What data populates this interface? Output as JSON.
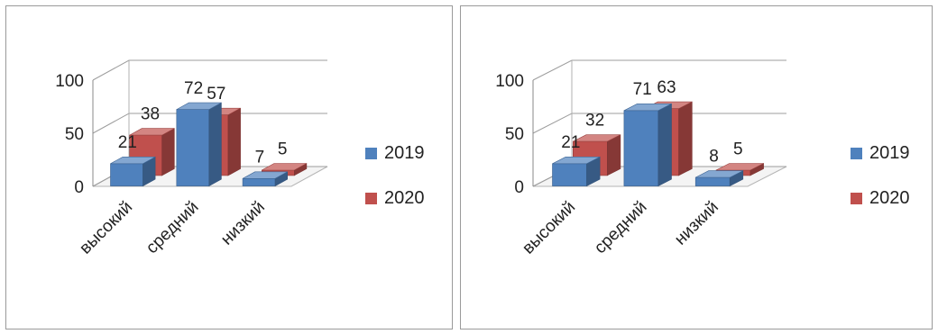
{
  "chart_data": [
    {
      "type": "bar",
      "title": "",
      "categories": [
        "высокий",
        "средний",
        "низкий"
      ],
      "series": [
        {
          "name": "2019",
          "values": [
            21,
            72,
            7
          ],
          "color": "#4F81BD"
        },
        {
          "name": "2020",
          "values": [
            38,
            57,
            5
          ],
          "color": "#C0504D"
        }
      ],
      "ylim": [
        0,
        100
      ],
      "yticks": [
        "0",
        "50",
        "100"
      ],
      "grid": true,
      "legend": "right"
    },
    {
      "type": "bar",
      "title": "",
      "categories": [
        "высокий",
        "средний",
        "низкий"
      ],
      "series": [
        {
          "name": "2019",
          "values": [
            21,
            71,
            8
          ],
          "color": "#4F81BD"
        },
        {
          "name": "2020",
          "values": [
            32,
            63,
            5
          ],
          "color": "#C0504D"
        }
      ],
      "ylim": [
        0,
        100
      ],
      "yticks": [
        "0",
        "50",
        "100"
      ],
      "grid": true,
      "legend": "right"
    }
  ]
}
